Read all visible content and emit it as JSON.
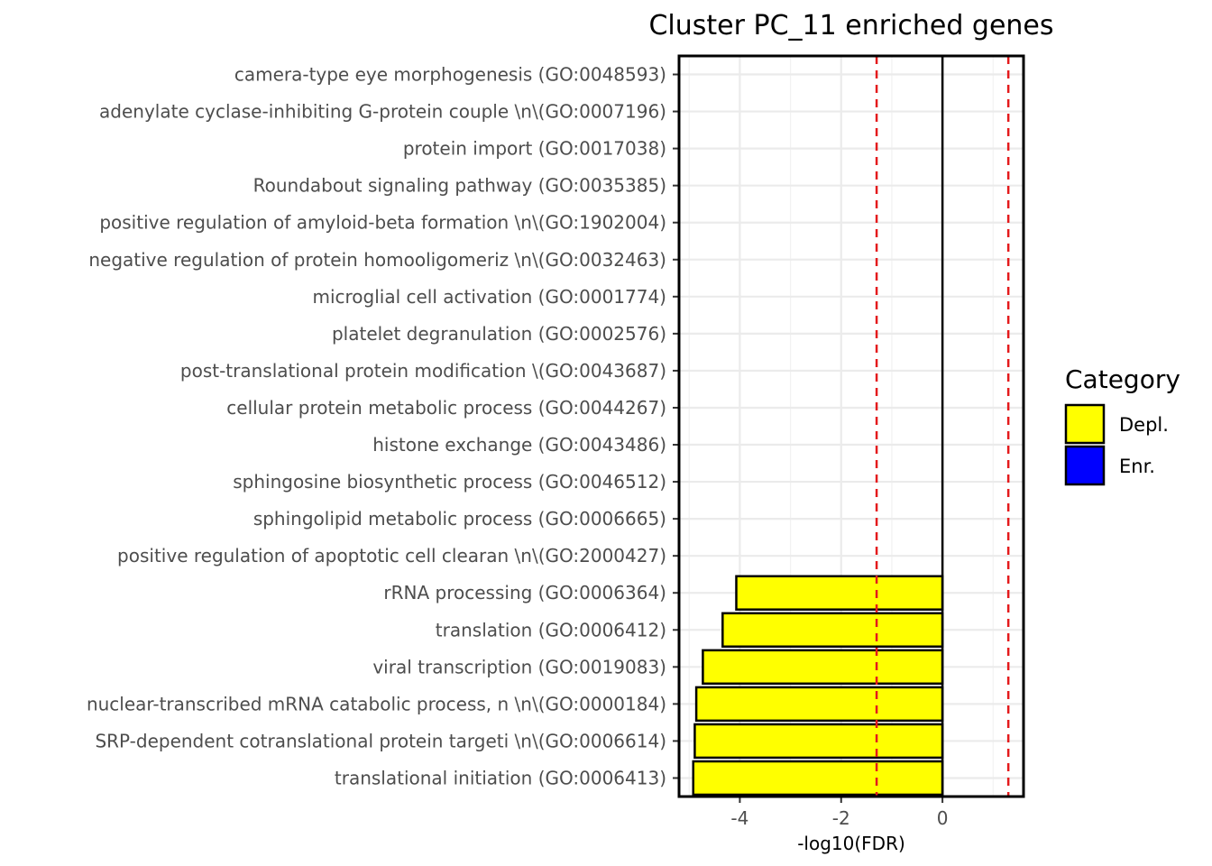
{
  "chart_data": {
    "type": "bar",
    "orientation": "horizontal",
    "title": "Cluster PC_11 enriched genes",
    "xlabel": "-log10(FDR)",
    "ylabel": "",
    "xlim": [
      -5.2,
      1.6
    ],
    "xticks": [
      -4,
      -2,
      0
    ],
    "xtick_labels": [
      "-4",
      "-2",
      "0"
    ],
    "grid": true,
    "threshold_lines": [
      -1.3,
      1.3
    ],
    "threshold_color": "#e41a1c",
    "categories": [
      "camera-type eye morphogenesis (GO:0048593)",
      "adenylate cyclase-inhibiting G-protein couple \\n\\(GO:0007196)",
      "protein import (GO:0017038)",
      "Roundabout signaling pathway (GO:0035385)",
      "positive regulation of amyloid-beta formation \\n\\(GO:1902004)",
      "negative regulation of protein homooligomeriz \\n\\(GO:0032463)",
      "microglial cell activation (GO:0001774)",
      "platelet degranulation (GO:0002576)",
      "post-translational protein modification  \\(GO:0043687)",
      "cellular protein metabolic process (GO:0044267)",
      "histone exchange (GO:0043486)",
      "sphingosine biosynthetic process (GO:0046512)",
      "sphingolipid metabolic process (GO:0006665)",
      "positive regulation of apoptotic cell clearan \\n\\(GO:2000427)",
      "rRNA processing (GO:0006364)",
      "translation (GO:0006412)",
      "viral transcription (GO:0019083)",
      "nuclear-transcribed mRNA catabolic process, n \\n\\(GO:0000184)",
      "SRP-dependent cotranslational protein targeti \\n\\(GO:0006614)",
      "translational initiation (GO:0006413)"
    ],
    "values": [
      0,
      0,
      0,
      0,
      0,
      0,
      0,
      0,
      0,
      0,
      0,
      0,
      0,
      0,
      -4.07,
      -4.34,
      -4.73,
      -4.86,
      -4.89,
      -4.92
    ],
    "bar_category": [
      "Depl.",
      "Depl.",
      "Depl.",
      "Depl.",
      "Depl.",
      "Depl.",
      "Depl.",
      "Depl.",
      "Depl.",
      "Depl.",
      "Depl.",
      "Depl.",
      "Depl.",
      "Depl.",
      "Depl.",
      "Depl.",
      "Depl.",
      "Depl.",
      "Depl.",
      "Depl."
    ],
    "legend": {
      "title": "Category",
      "placement": "right",
      "items": [
        {
          "label": "Depl.",
          "color": "#ffff00"
        },
        {
          "label": "Enr.",
          "color": "#0000ff"
        }
      ]
    }
  }
}
